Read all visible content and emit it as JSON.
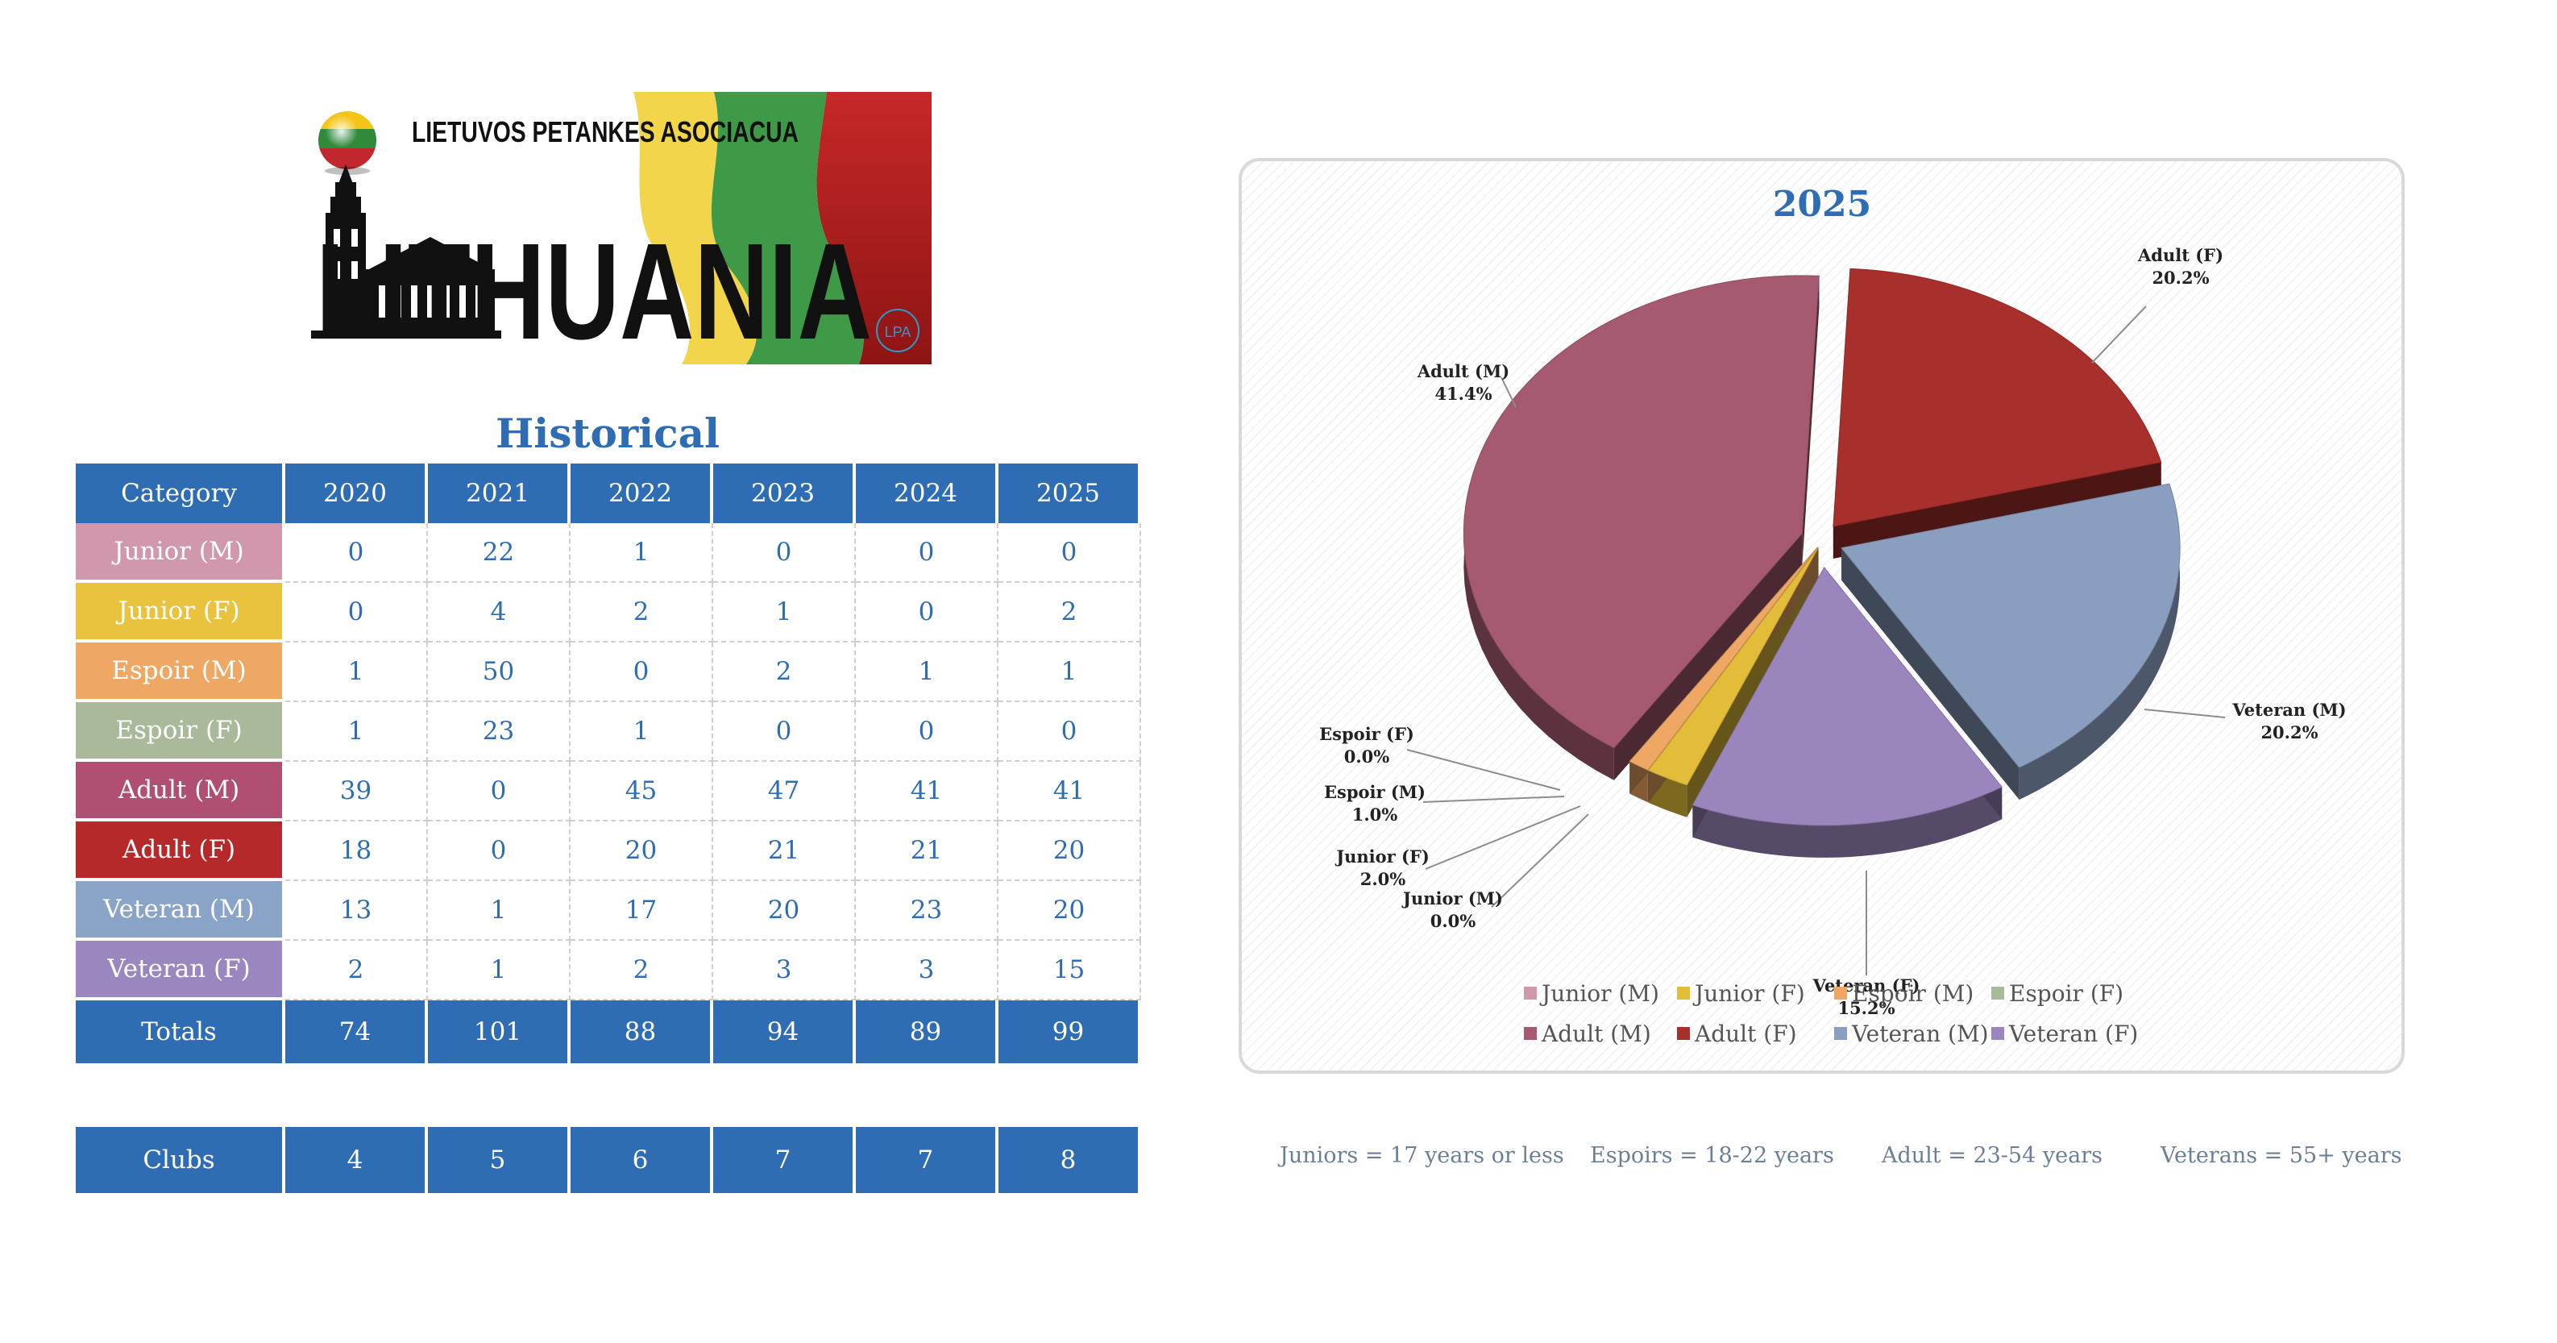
{
  "logo": {
    "org_name": "LIETUVOS PETANKES ASOCIACUA",
    "country": "LITHUANIA",
    "badge": "LPA"
  },
  "historical": {
    "title": "Historical",
    "header": [
      "Category",
      "2020",
      "2021",
      "2022",
      "2023",
      "2024",
      "2025"
    ],
    "rows": [
      {
        "label": "Junior (M)",
        "color": "#d197ad",
        "values": [
          "0",
          "22",
          "1",
          "0",
          "0",
          "0"
        ]
      },
      {
        "label": "Junior (F)",
        "color": "#e9c23e",
        "values": [
          "0",
          "4",
          "2",
          "1",
          "0",
          "2"
        ]
      },
      {
        "label": "Espoir (M)",
        "color": "#eea864",
        "values": [
          "1",
          "50",
          "0",
          "2",
          "1",
          "1"
        ]
      },
      {
        "label": "Espoir (F)",
        "color": "#a9b99a",
        "values": [
          "1",
          "23",
          "1",
          "0",
          "0",
          "0"
        ]
      },
      {
        "label": "Adult (M)",
        "color": "#b14f73",
        "values": [
          "39",
          "0",
          "45",
          "47",
          "41",
          "41"
        ]
      },
      {
        "label": "Adult (F)",
        "color": "#b5292b",
        "values": [
          "18",
          "0",
          "20",
          "21",
          "21",
          "20"
        ]
      },
      {
        "label": "Veteran (M)",
        "color": "#8aa4c7",
        "values": [
          "13",
          "1",
          "17",
          "20",
          "23",
          "20"
        ]
      },
      {
        "label": "Veteran (F)",
        "color": "#9a87c0",
        "values": [
          "2",
          "1",
          "2",
          "3",
          "3",
          "15"
        ]
      }
    ],
    "totals": {
      "label": "Totals",
      "values": [
        "74",
        "101",
        "88",
        "94",
        "89",
        "99"
      ]
    },
    "clubs": {
      "label": "Clubs",
      "values": [
        "4",
        "5",
        "6",
        "7",
        "7",
        "8"
      ]
    }
  },
  "notes": [
    "Juniors = 17 years or less",
    "Espoirs = 18-22 years",
    "Adult = 23-54 years",
    "Veterans = 55+ years"
  ],
  "chart_data": {
    "type": "pie",
    "title": "2025",
    "legend_position": "bottom",
    "slices": [
      {
        "name": "Junior (M)",
        "value": 0,
        "label": "0.0%",
        "color": "#d197ad"
      },
      {
        "name": "Junior (F)",
        "value": 2,
        "label": "2.0%",
        "color": "#e3bd3a"
      },
      {
        "name": "Espoir (M)",
        "value": 1,
        "label": "1.0%",
        "color": "#eea864"
      },
      {
        "name": "Espoir (F)",
        "value": 0,
        "label": "0.0%",
        "color": "#a9b99a"
      },
      {
        "name": "Adult (M)",
        "value": 41,
        "label": "41.4%",
        "color": "#a55a70"
      },
      {
        "name": "Adult (F)",
        "value": 20,
        "label": "20.2%",
        "color": "#a8302c"
      },
      {
        "name": "Veteran (M)",
        "value": 20,
        "label": "20.2%",
        "color": "#8a9fbf"
      },
      {
        "name": "Veteran (F)",
        "value": 15,
        "label": "15.2%",
        "color": "#9a86bd"
      }
    ]
  }
}
